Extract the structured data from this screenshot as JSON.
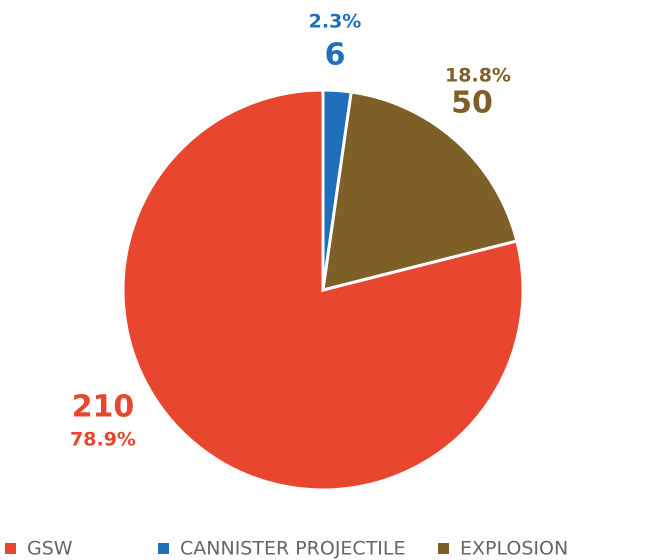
{
  "chart_data": {
    "type": "pie",
    "categories": [
      "GSW",
      "CANNISTER PROJECTILE",
      "EXPLOSION"
    ],
    "values": [
      210,
      6,
      50
    ],
    "percent_labels": [
      "78.9%",
      "2.3%",
      "18.8%"
    ],
    "colors": [
      "#e8462f",
      "#1f6fbd",
      "#7e5f28"
    ],
    "legend": "bottom"
  }
}
